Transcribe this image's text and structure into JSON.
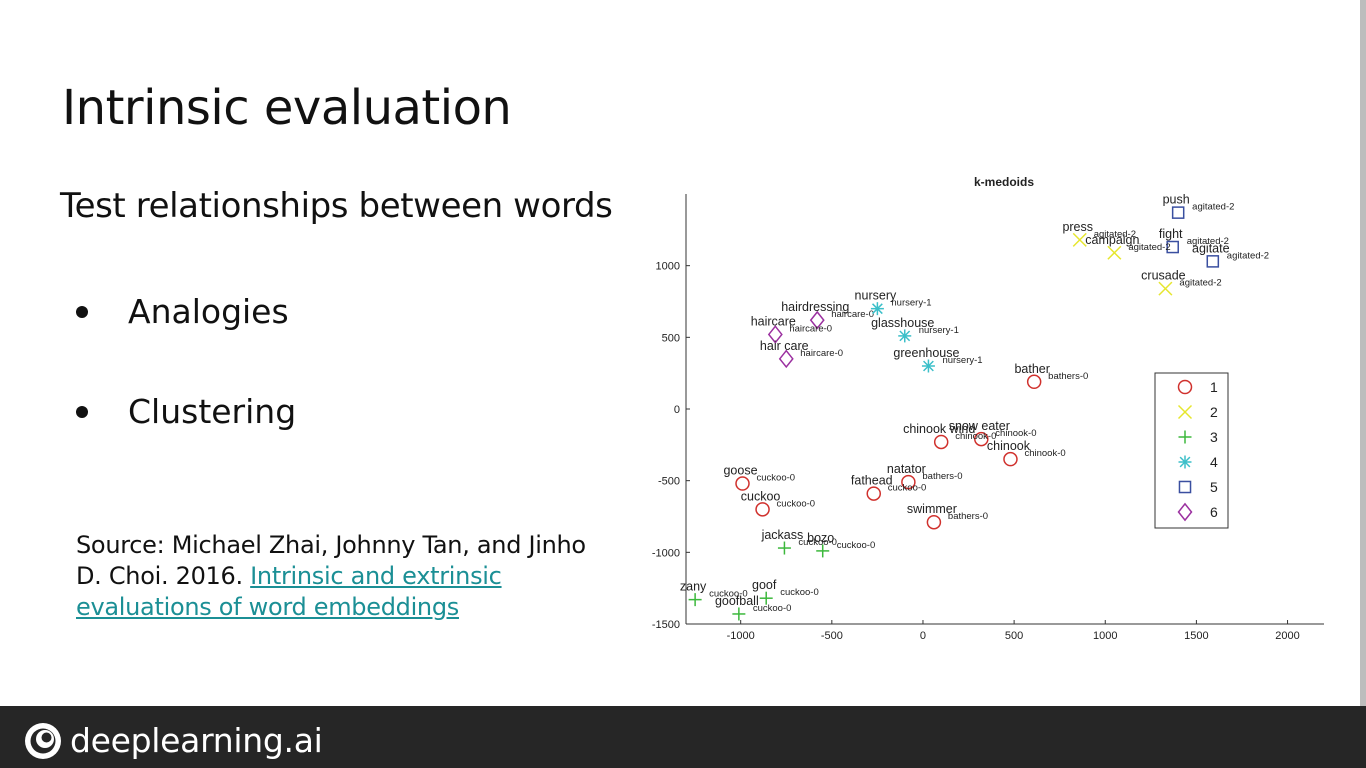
{
  "slide": {
    "title": "Intrinsic evaluation",
    "subtitle": "Test relationships between words",
    "bullets": [
      "Analogies",
      "Clustering"
    ],
    "source_prefix": "Source: Michael Zhai, Johnny Tan, and Jinho D. Choi. 2016. ",
    "source_link": "Intrinsic and extrinsic evaluations of word embeddings"
  },
  "footer": {
    "brand": "deeplearning.ai"
  },
  "chart_data": {
    "type": "scatter",
    "title": "k-medoids",
    "xlim": [
      -1300,
      2200
    ],
    "ylim": [
      -1500,
      1500
    ],
    "x_ticks": [
      -1000,
      -500,
      0,
      500,
      1000,
      1500,
      2000
    ],
    "y_ticks": [
      1000,
      500,
      0,
      -500,
      -1000,
      -1500
    ],
    "legend": [
      "1",
      "2",
      "3",
      "4",
      "5",
      "6"
    ],
    "legend_position": "right",
    "colors": {
      "1": "#d0312d",
      "2": "#e6e62e",
      "3": "#3cb83c",
      "4": "#3bbfc9",
      "5": "#3a4fa0",
      "6": "#9b30a0"
    },
    "markers": {
      "1": "circle",
      "2": "x",
      "3": "plus",
      "4": "star",
      "5": "square",
      "6": "diamond"
    },
    "points": [
      {
        "word": "push",
        "cluster": "5",
        "x": 1400,
        "y": 1370,
        "tag": "agitated-2"
      },
      {
        "word": "press",
        "cluster": "2",
        "x": 860,
        "y": 1180,
        "tag": "agitated-2"
      },
      {
        "word": "fight",
        "cluster": "5",
        "x": 1370,
        "y": 1130,
        "tag": "agitated-2"
      },
      {
        "word": "campaign",
        "cluster": "2",
        "x": 1050,
        "y": 1090,
        "tag": "agitated-2"
      },
      {
        "word": "agitate",
        "cluster": "5",
        "x": 1590,
        "y": 1030,
        "tag": "agitated-2"
      },
      {
        "word": "crusade",
        "cluster": "2",
        "x": 1330,
        "y": 840,
        "tag": "agitated-2"
      },
      {
        "word": "hairdressing",
        "cluster": "6",
        "x": -580,
        "y": 620,
        "tag": "haircare-0"
      },
      {
        "word": "nursery",
        "cluster": "4",
        "x": -250,
        "y": 700,
        "tag": "nursery-1"
      },
      {
        "word": "haircare",
        "cluster": "6",
        "x": -810,
        "y": 520,
        "tag": "haircare-0"
      },
      {
        "word": "glasshouse",
        "cluster": "4",
        "x": -100,
        "y": 510,
        "tag": "nursery-1"
      },
      {
        "word": "hair care",
        "cluster": "6",
        "x": -750,
        "y": 350,
        "tag": "haircare-0"
      },
      {
        "word": "greenhouse",
        "cluster": "4",
        "x": 30,
        "y": 300,
        "tag": "nursery-1"
      },
      {
        "word": "bather",
        "cluster": "1",
        "x": 610,
        "y": 190,
        "tag": "bathers-0"
      },
      {
        "word": "snow eater",
        "cluster": "1",
        "x": 320,
        "y": -210,
        "tag": "chinook-0"
      },
      {
        "word": "chinook wind",
        "cluster": "1",
        "x": 100,
        "y": -230,
        "tag": "chinook-0"
      },
      {
        "word": "chinook",
        "cluster": "1",
        "x": 480,
        "y": -350,
        "tag": "chinook-0"
      },
      {
        "word": "natator",
        "cluster": "1",
        "x": -80,
        "y": -510,
        "tag": "bathers-0"
      },
      {
        "word": "fathead",
        "cluster": "1",
        "x": -270,
        "y": -590,
        "tag": "cuckoo-0"
      },
      {
        "word": "goose",
        "cluster": "1",
        "x": -990,
        "y": -520,
        "tag": "cuckoo-0"
      },
      {
        "word": "cuckoo",
        "cluster": "1",
        "x": -880,
        "y": -700,
        "tag": "cuckoo-0"
      },
      {
        "word": "swimmer",
        "cluster": "1",
        "x": 60,
        "y": -790,
        "tag": "bathers-0"
      },
      {
        "word": "jackass",
        "cluster": "3",
        "x": -760,
        "y": -970,
        "tag": "cuckoo-0"
      },
      {
        "word": "bozo",
        "cluster": "3",
        "x": -550,
        "y": -990,
        "tag": "cuckoo-0"
      },
      {
        "word": "zany",
        "cluster": "3",
        "x": -1250,
        "y": -1330,
        "tag": "cuckoo-0"
      },
      {
        "word": "goof",
        "cluster": "3",
        "x": -860,
        "y": -1320,
        "tag": "cuckoo-0"
      },
      {
        "word": "goofball",
        "cluster": "3",
        "x": -1010,
        "y": -1430,
        "tag": "cuckoo-0"
      }
    ]
  }
}
